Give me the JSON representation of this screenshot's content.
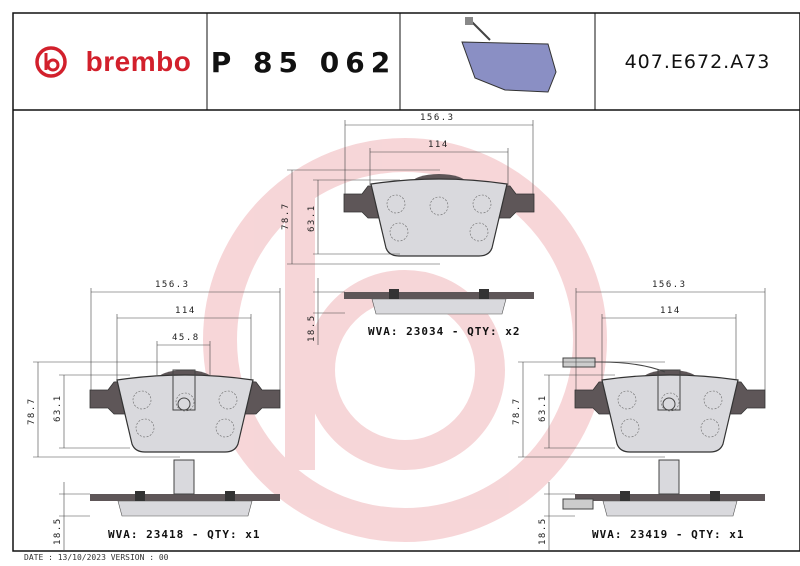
{
  "header": {
    "brand": "brembo",
    "part_number": "P 85 062",
    "reference_code": "407.E672.A73"
  },
  "colors": {
    "brand_red": "#d2202c",
    "watermark": "#f6d2d4",
    "backing_plate": "#5e5658",
    "friction": "#d9d9dd",
    "thumbnail": "#8a8fc4"
  },
  "pads": [
    {
      "wva": "WVA: 23034 - QTY: x2",
      "width_total": "156.3",
      "width_friction": "114",
      "height_total": "78.7",
      "height_friction": "63.1",
      "thickness": "18.5"
    },
    {
      "wva": "WVA: 23418 - QTY: x1",
      "width_total": "156.3",
      "width_friction": "114",
      "sensor_offset": "45.8",
      "height_total": "78.7",
      "height_friction": "63.1",
      "thickness": "18.5"
    },
    {
      "wva": "WVA: 23419 - QTY: x1",
      "width_total": "156.3",
      "width_friction": "114",
      "height_total": "78.7",
      "height_friction": "63.1",
      "thickness": "18.5"
    }
  ],
  "footer": {
    "date": "DATE : 13/10/2023 VERSION : 00"
  }
}
